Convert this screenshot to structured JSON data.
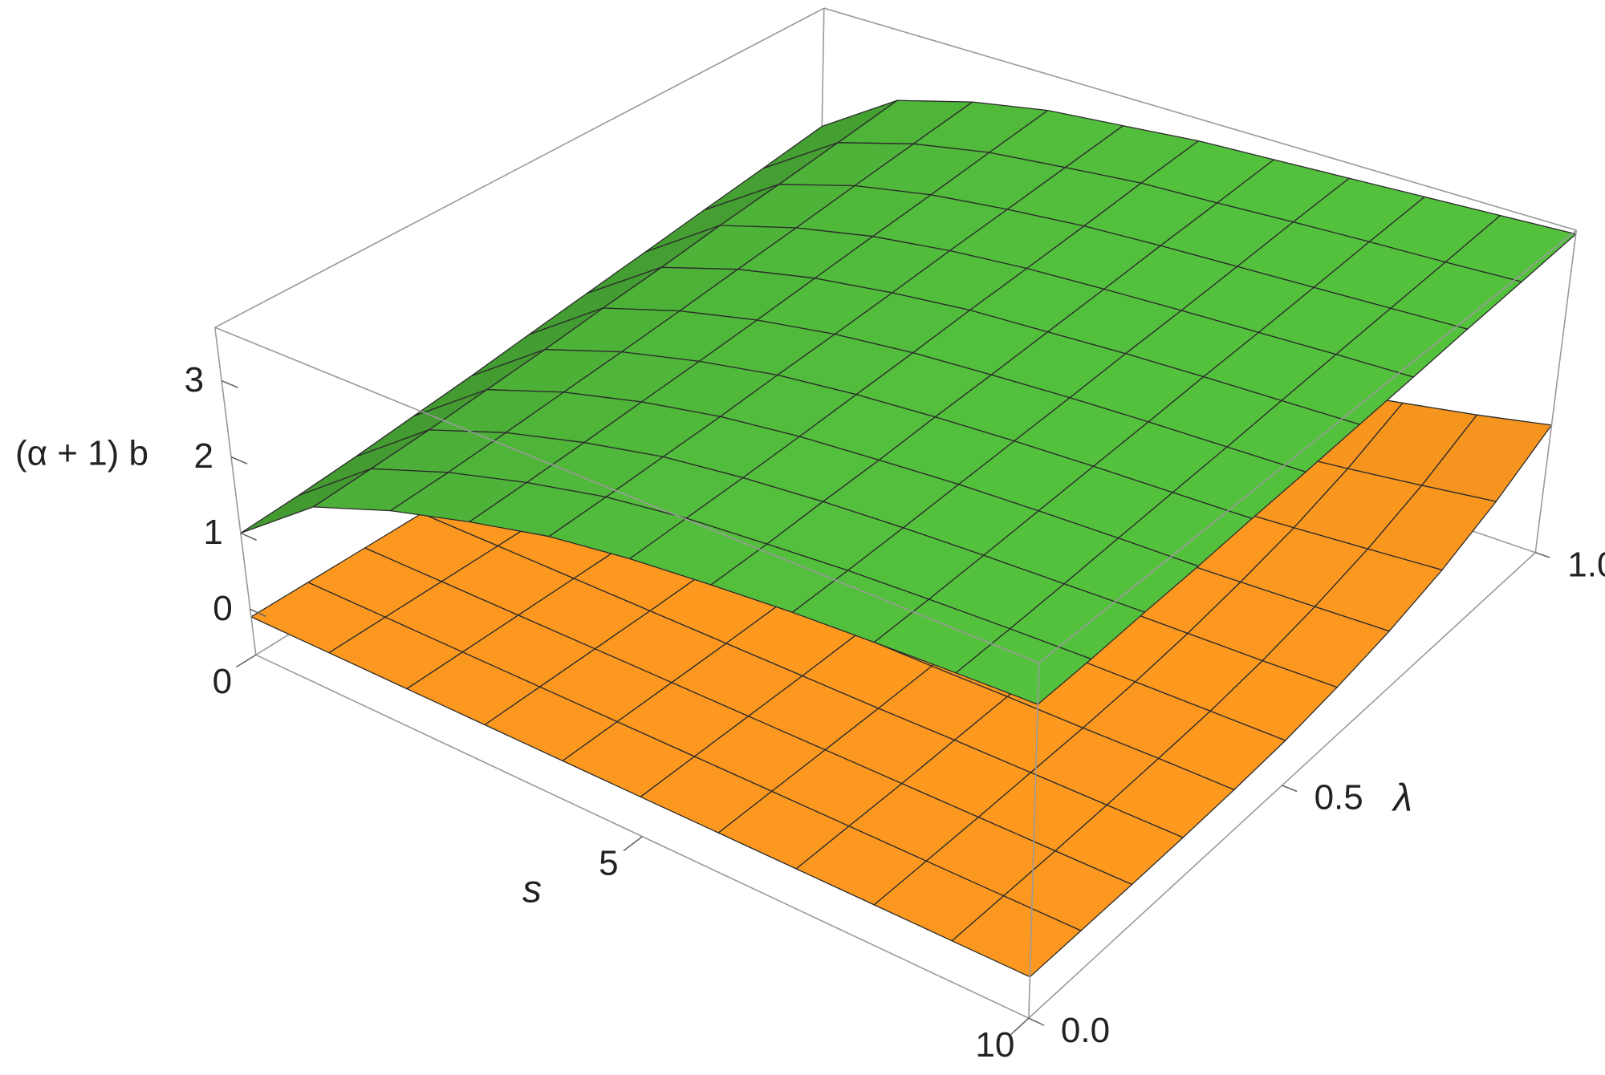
{
  "chart_data": {
    "type": "surface",
    "xlabel": "s",
    "ylabel": "λ",
    "zlabel": "(α + 1) b",
    "x": [
      0,
      1,
      2,
      3,
      4,
      5,
      6,
      7,
      8,
      9,
      10
    ],
    "y": [
      0,
      0.1,
      0.2,
      0.3,
      0.4,
      0.5,
      0.6,
      0.7,
      0.8,
      0.9,
      1
    ],
    "xlim": [
      0,
      10
    ],
    "ylim": [
      0,
      1
    ],
    "zlim": [
      -0.6,
      3.7
    ],
    "xticks": [
      0,
      5,
      10
    ],
    "yticks": [
      {
        "value": 0,
        "label": "0.0"
      },
      {
        "value": 0.5,
        "label": "0.5"
      },
      {
        "value": 1,
        "label": "1.0"
      }
    ],
    "zticks": [
      0,
      1,
      2,
      3
    ],
    "surfaces": [
      {
        "color": "#ff9a1f",
        "z": [
          [
            -0.1,
            -0.1,
            -0.1,
            -0.1,
            -0.1,
            -0.1,
            -0.1,
            -0.1,
            -0.1,
            -0.1,
            -0.1
          ],
          [
            -0.1,
            -0.1,
            -0.1,
            -0.1,
            -0.1,
            -0.1,
            -0.1,
            -0.1,
            -0.1,
            -0.1,
            -0.1
          ],
          [
            -0.1,
            -0.1,
            -0.1,
            -0.1,
            -0.1,
            -0.1,
            -0.1,
            -0.1,
            -0.1,
            -0.1,
            -0.1
          ],
          [
            -0.1,
            -0.1,
            -0.1,
            -0.1,
            -0.1,
            -0.1,
            -0.1,
            -0.09,
            -0.09,
            -0.09,
            -0.09
          ],
          [
            -0.1,
            -0.1,
            -0.1,
            -0.09,
            -0.09,
            -0.09,
            -0.09,
            -0.08,
            -0.08,
            -0.07,
            -0.07
          ],
          [
            -0.1,
            -0.1,
            -0.09,
            -0.09,
            -0.08,
            -0.07,
            -0.07,
            -0.06,
            -0.05,
            -0.04,
            -0.03
          ],
          [
            -0.1,
            -0.09,
            -0.09,
            -0.07,
            -0.06,
            -0.04,
            -0.03,
            -0.01,
            0.01,
            0.03,
            0.06
          ],
          [
            -0.1,
            -0.09,
            -0.07,
            -0.05,
            -0.03,
            0.0,
            0.03,
            0.07,
            0.11,
            0.15,
            0.19
          ],
          [
            -0.1,
            -0.08,
            -0.06,
            -0.02,
            0.02,
            0.07,
            0.13,
            0.19,
            0.25,
            0.32,
            0.39
          ],
          [
            -0.1,
            -0.07,
            -0.03,
            0.03,
            0.1,
            0.18,
            0.27,
            0.36,
            0.46,
            0.57,
            0.69
          ],
          [
            -0.1,
            -0.06,
            0.01,
            0.1,
            0.2,
            0.32,
            0.46,
            0.6,
            0.76,
            0.92,
            1.1
          ]
        ]
      },
      {
        "color": "#55c43e",
        "z": [
          [
            1.0,
            1.8,
            2.2,
            2.5,
            2.75,
            2.9,
            3.0,
            3.08,
            3.13,
            3.17,
            3.2
          ],
          [
            1.05,
            1.85,
            2.24,
            2.54,
            2.78,
            2.93,
            3.02,
            3.1,
            3.15,
            3.19,
            3.22
          ],
          [
            1.12,
            1.91,
            2.3,
            2.59,
            2.82,
            2.96,
            3.06,
            3.13,
            3.18,
            3.22,
            3.26
          ],
          [
            1.21,
            1.99,
            2.37,
            2.65,
            2.86,
            3.0,
            3.09,
            3.17,
            3.22,
            3.26,
            3.29
          ],
          [
            1.3,
            2.07,
            2.44,
            2.71,
            2.92,
            3.05,
            3.14,
            3.21,
            3.26,
            3.3,
            3.34
          ],
          [
            1.41,
            2.17,
            2.52,
            2.78,
            2.97,
            3.1,
            3.18,
            3.25,
            3.3,
            3.34,
            3.38
          ],
          [
            1.52,
            2.26,
            2.61,
            2.86,
            3.03,
            3.16,
            3.23,
            3.3,
            3.35,
            3.39,
            3.43
          ],
          [
            1.63,
            2.37,
            2.7,
            2.94,
            3.1,
            3.21,
            3.28,
            3.34,
            3.39,
            3.44,
            3.48
          ],
          [
            1.75,
            2.47,
            2.8,
            3.02,
            3.16,
            3.27,
            3.34,
            3.39,
            3.44,
            3.49,
            3.54
          ],
          [
            1.87,
            2.58,
            2.9,
            3.11,
            3.23,
            3.34,
            3.39,
            3.45,
            3.5,
            3.54,
            3.59
          ],
          [
            2.0,
            2.7,
            3.0,
            3.2,
            3.3,
            3.4,
            3.45,
            3.5,
            3.55,
            3.6,
            3.65
          ]
        ]
      }
    ]
  }
}
